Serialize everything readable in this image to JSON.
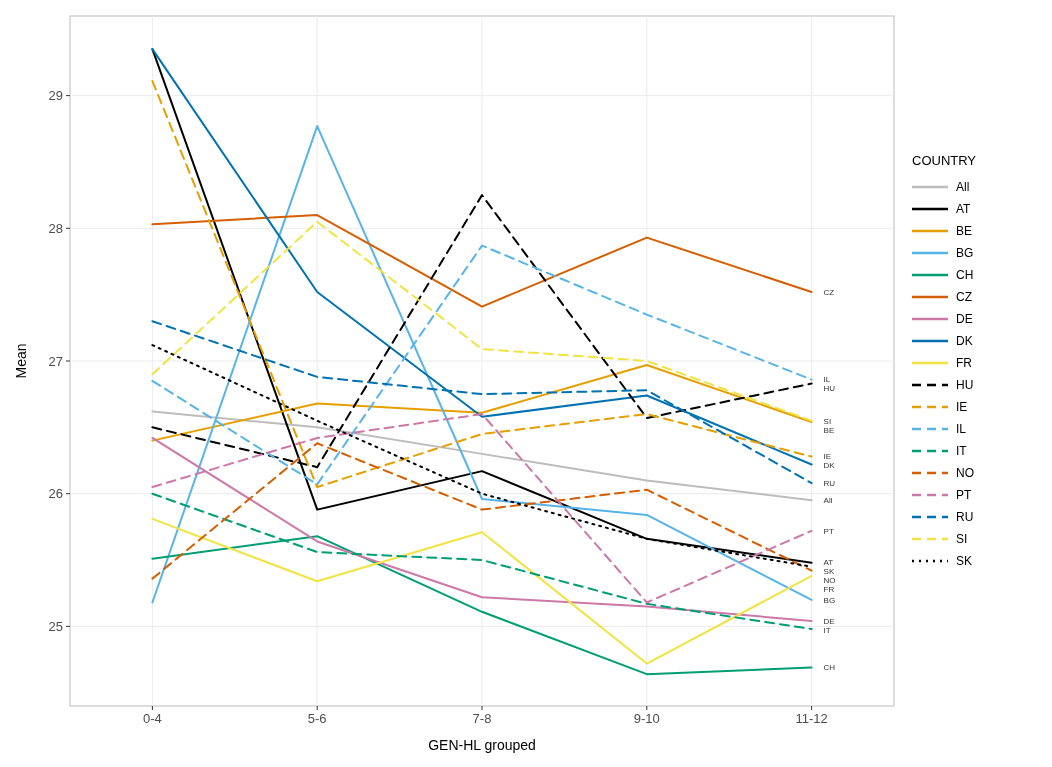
{
  "chart_data": {
    "type": "line",
    "xlabel": "GEN-HL grouped",
    "ylabel": "Mean",
    "legend_title": "COUNTRY",
    "legend": "right",
    "grid": true,
    "categories": [
      "0-4",
      "5-6",
      "7-8",
      "9-10",
      "11-12"
    ],
    "ylim": [
      24.4,
      29.6
    ],
    "yticks": [
      25,
      26,
      27,
      28,
      29
    ],
    "series": [
      {
        "name": "All",
        "color": "#bdbdbd",
        "line_style": "solid",
        "values": [
          26.62,
          26.5,
          26.3,
          26.1,
          25.95
        ]
      },
      {
        "name": "AT",
        "color": "#000000",
        "line_style": "solid",
        "values": [
          29.35,
          25.88,
          26.17,
          25.66,
          25.48
        ]
      },
      {
        "name": "BE",
        "color": "#e69f00",
        "line_style": "solid",
        "values": [
          26.4,
          26.68,
          26.61,
          26.97,
          26.54
        ]
      },
      {
        "name": "BG",
        "color": "#56b4e9",
        "line_style": "solid",
        "values": [
          25.18,
          28.77,
          25.96,
          25.84,
          25.2
        ]
      },
      {
        "name": "CH",
        "color": "#009e73",
        "line_style": "solid",
        "values": [
          25.51,
          25.68,
          25.11,
          24.64,
          24.69
        ]
      },
      {
        "name": "CZ",
        "color": "#d55e00",
        "line_style": "solid",
        "values": [
          28.03,
          28.1,
          27.41,
          27.93,
          27.52
        ]
      },
      {
        "name": "DE",
        "color": "#cc79a7",
        "line_style": "solid",
        "values": [
          26.42,
          25.64,
          25.22,
          25.15,
          25.04
        ]
      },
      {
        "name": "DK",
        "color": "#0072b2",
        "line_style": "solid",
        "values": [
          29.35,
          27.52,
          26.58,
          26.74,
          26.22
        ]
      },
      {
        "name": "FR",
        "color": "#f0e442",
        "line_style": "solid",
        "values": [
          25.81,
          25.34,
          25.71,
          24.72,
          25.38
        ]
      },
      {
        "name": "HU",
        "color": "#000000",
        "line_style": "dashed",
        "values": [
          26.5,
          26.2,
          28.25,
          26.57,
          26.83
        ]
      },
      {
        "name": "IE",
        "color": "#e69f00",
        "line_style": "dashed",
        "values": [
          29.11,
          26.05,
          26.45,
          26.6,
          26.28
        ]
      },
      {
        "name": "IL",
        "color": "#56b4e9",
        "line_style": "dashed",
        "values": [
          26.85,
          26.07,
          27.87,
          27.35,
          26.86
        ]
      },
      {
        "name": "IT",
        "color": "#009e73",
        "line_style": "dashed",
        "values": [
          26.0,
          25.56,
          25.5,
          25.17,
          24.98
        ]
      },
      {
        "name": "NO",
        "color": "#d55e00",
        "line_style": "dashed",
        "values": [
          25.36,
          26.38,
          25.88,
          26.03,
          25.42
        ]
      },
      {
        "name": "PT",
        "color": "#cc79a7",
        "line_style": "dashed",
        "values": [
          26.05,
          26.42,
          26.6,
          25.18,
          25.72
        ]
      },
      {
        "name": "RU",
        "color": "#0072b2",
        "line_style": "dashed",
        "values": [
          27.3,
          26.88,
          26.75,
          26.78,
          26.08
        ]
      },
      {
        "name": "SI",
        "color": "#f0e442",
        "line_style": "dashed",
        "values": [
          26.9,
          28.05,
          27.09,
          27.0,
          26.55
        ]
      },
      {
        "name": "SK",
        "color": "#000000",
        "line_style": "dotted",
        "values": [
          27.12,
          26.55,
          26.0,
          25.66,
          25.45
        ]
      }
    ],
    "annotations": [
      {
        "text": "CZ",
        "x": "11-12",
        "y": 27.52
      },
      {
        "text": "HU",
        "x": "11-12",
        "y": 26.83
      },
      {
        "text": "IL",
        "x": "11-12",
        "y": 26.86
      },
      {
        "text": "SI",
        "x": "11-12",
        "y": 26.55
      },
      {
        "text": "BE",
        "x": "11-12",
        "y": 26.54
      },
      {
        "text": "IE",
        "x": "11-12",
        "y": 26.28
      },
      {
        "text": "DK",
        "x": "11-12",
        "y": 26.22
      },
      {
        "text": "RU",
        "x": "11-12",
        "y": 26.08
      },
      {
        "text": "All",
        "x": "11-12",
        "y": 25.95
      },
      {
        "text": "PT",
        "x": "11-12",
        "y": 25.72
      },
      {
        "text": "AT",
        "x": "11-12",
        "y": 25.48
      },
      {
        "text": "SK",
        "x": "11-12",
        "y": 25.45
      },
      {
        "text": "NO",
        "x": "11-12",
        "y": 25.42
      },
      {
        "text": "FR",
        "x": "11-12",
        "y": 25.38
      },
      {
        "text": "BG",
        "x": "11-12",
        "y": 25.2
      },
      {
        "text": "DE",
        "x": "11-12",
        "y": 25.04
      },
      {
        "text": "IT",
        "x": "11-12",
        "y": 24.98
      },
      {
        "text": "CH",
        "x": "11-12",
        "y": 24.69
      }
    ]
  }
}
